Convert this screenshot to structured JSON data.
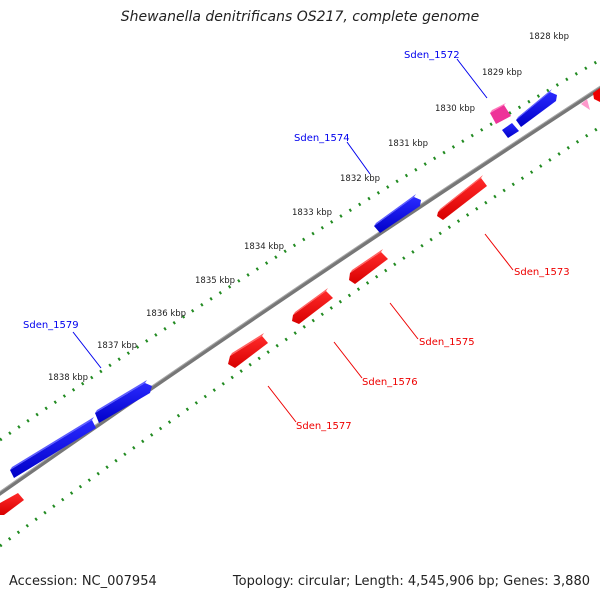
{
  "title": "Shewanella denitrificans OS217, complete genome",
  "footer": {
    "accession": "Accession: NC_007954",
    "summary": "Topology: circular; Length: 4,545,906 bp; Genes: 3,880"
  },
  "colors": {
    "forward_strand": "#0000ee",
    "reverse_strand": "#ee0000",
    "other_feature": "#ee3399",
    "backbone": "#808080",
    "tick": "#228b22"
  },
  "position_labels": [
    "1828 kbp",
    "1829 kbp",
    "1830 kbp",
    "1831 kbp",
    "1832 kbp",
    "1833 kbp",
    "1834 kbp",
    "1835 kbp",
    "1836 kbp",
    "1837 kbp",
    "1838 kbp"
  ],
  "gene_labels": {
    "forward": [
      "Sden_1572",
      "Sden_1574",
      "Sden_1579"
    ],
    "reverse": [
      "Sden_1573",
      "Sden_1575",
      "Sden_1576",
      "Sden_1577"
    ]
  }
}
